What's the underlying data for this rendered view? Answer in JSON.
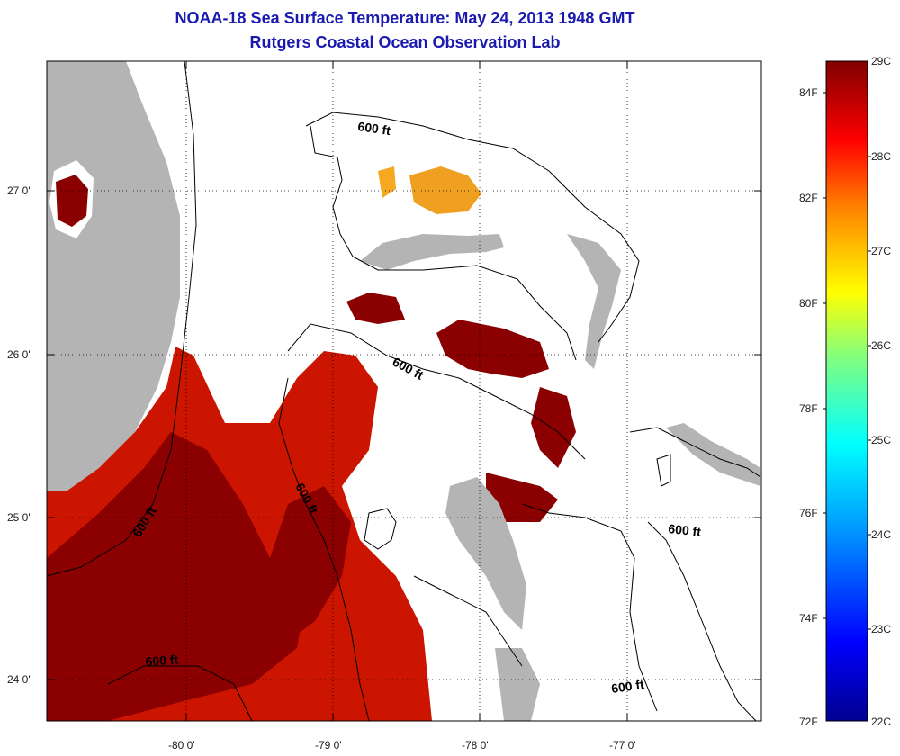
{
  "header": {
    "title": "NOAA-18 Sea Surface Temperature:  May 24, 2013 1948 GMT",
    "subtitle": "Rutgers Coastal Ocean Observation Lab"
  },
  "map": {
    "lat_ticks": [
      "27 0'",
      "26 0'",
      "25 0'",
      "24 0'"
    ],
    "lon_ticks": [
      "-80 0'",
      "-79 0'",
      "-78 0'",
      "-77 0'"
    ],
    "contour_labels": [
      "600 ft",
      "600 ft",
      "600 ft",
      "600 ft",
      "600 ft",
      "600 ft"
    ],
    "colors": {
      "land": "#b4b4b4",
      "sst_warm": "#8b0000",
      "sst_hot": "#cc1a00",
      "sst_mid": "#f0a020",
      "cloud": "#ffffff"
    }
  },
  "colorbar": {
    "celsius_labels": [
      "29C",
      "28C",
      "27C",
      "26C",
      "25C",
      "24C",
      "23C",
      "22C"
    ],
    "fahrenheit_labels": [
      "84F",
      "82F",
      "80F",
      "78F",
      "76F",
      "74F",
      "72F"
    ],
    "range_c": [
      22,
      29
    ],
    "range_f": [
      72,
      84
    ]
  }
}
